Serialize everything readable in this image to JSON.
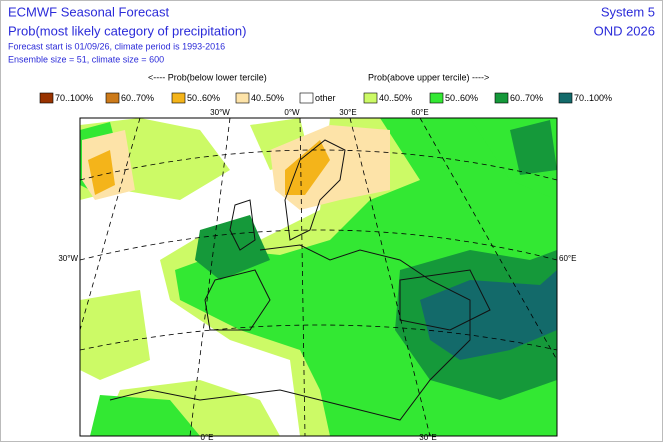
{
  "header": {
    "title": "ECMWF Seasonal Forecast",
    "subtitle": "Prob(most likely category of precipitation)",
    "info1": "Forecast start is 01/09/26, climate period is 1993-2016",
    "info2": "Ensemble size = 51, climate size = 600",
    "system": "System 5",
    "period": "OND 2026"
  },
  "legend": {
    "below": "<---- Prob(below lower tercile)",
    "above": "Prob(above upper tercile) ---->",
    "items": [
      {
        "label": "70..100%",
        "color": "#993300"
      },
      {
        "label": "60..70%",
        "color": "#cc7a1a"
      },
      {
        "label": "50..60%",
        "color": "#f4b41a"
      },
      {
        "label": "40..50%",
        "color": "#fde3a8"
      },
      {
        "label": "other",
        "color": "#ffffff"
      },
      {
        "label": "40..50%",
        "color": "#ccfa66"
      },
      {
        "label": "50..60%",
        "color": "#33e833"
      },
      {
        "label": "60..70%",
        "color": "#15993a"
      },
      {
        "label": "70..100%",
        "color": "#136a6a"
      }
    ]
  },
  "map": {
    "top_labels": [
      "30°W",
      "0°W",
      "30°E",
      "60°E"
    ],
    "left_label": "30°W",
    "right_label": "60°E",
    "bottom_labels": [
      "0°E",
      "30°E"
    ]
  }
}
